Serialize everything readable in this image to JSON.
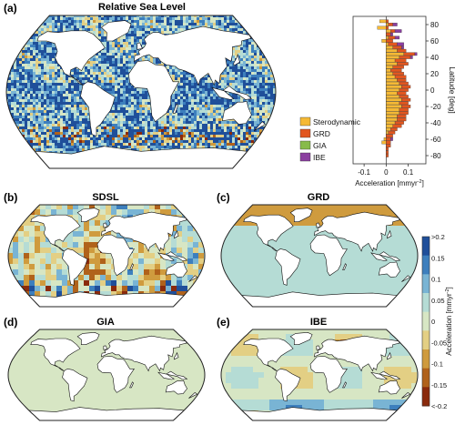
{
  "figure": {
    "panel_a": {
      "label": "(a)",
      "title": "Relative Sea Level"
    },
    "panel_b": {
      "label": "(b)",
      "title": "SDSL"
    },
    "panel_c": {
      "label": "(c)",
      "title": "GRD"
    },
    "panel_d": {
      "label": "(d)",
      "title": "GIA"
    },
    "panel_e": {
      "label": "(e)",
      "title": "IBE"
    }
  },
  "maps": {
    "a": {
      "style": "strong",
      "seed": 11
    },
    "b": {
      "style": "sdsl",
      "seed": 23
    },
    "c": {
      "style": "grd",
      "seed": 37
    },
    "d": {
      "style": "gia",
      "seed": 41
    },
    "e": {
      "style": "ibe",
      "seed": 53
    }
  },
  "colors": {
    "steric": "#f5b935",
    "grd": "#e2561f",
    "gia": "#87bb4a",
    "ibe": "#8b3ea0",
    "ocean_base": "#b3dbd9",
    "deep_blue": "#2a5aa6",
    "dark_red": "#8c2a0f"
  },
  "chart_data": {
    "type": "bar",
    "orientation": "horizontal-stacked",
    "xlabel": "Acceleration [mmyr",
    "xlabel_sup": "-2",
    "xlabel_end": "]",
    "ylabel": "Latitude [deg]",
    "xlim": [
      -0.15,
      0.18
    ],
    "ylim": [
      -90,
      90
    ],
    "xticks": [
      "-0.1",
      "0",
      "0.1"
    ],
    "xtick_values": [
      -0.1,
      0,
      0.1
    ],
    "yticks": [
      "-80",
      "-60",
      "-40",
      "-20",
      "0",
      "20",
      "40",
      "60",
      "80"
    ],
    "ytick_values": [
      -80,
      -60,
      -40,
      -20,
      0,
      20,
      40,
      60,
      80
    ],
    "legend": [
      {
        "name": "Sterodynamic",
        "key": "steric"
      },
      {
        "name": "GRD",
        "key": "grd"
      },
      {
        "name": "GIA",
        "key": "gia"
      },
      {
        "name": "IBE",
        "key": "ibe"
      }
    ],
    "latitudes": [
      84,
      80,
      76,
      72,
      68,
      64,
      60,
      56,
      52,
      48,
      44,
      40,
      36,
      32,
      28,
      24,
      20,
      16,
      12,
      8,
      4,
      0,
      -4,
      -8,
      -12,
      -16,
      -20,
      -24,
      -28,
      -32,
      -36,
      -40,
      -44,
      -48,
      -52,
      -56,
      -60,
      -64,
      -68,
      -72,
      -76,
      -80
    ],
    "series": [
      {
        "name": "Sterodynamic",
        "key": "steric",
        "values": [
          -0.03,
          0.01,
          -0.04,
          0.02,
          0.0,
          0.01,
          -0.02,
          0.01,
          0.03,
          0.05,
          0.08,
          0.06,
          0.04,
          0.05,
          0.03,
          0.02,
          0.03,
          0.04,
          0.05,
          0.06,
          0.07,
          0.06,
          0.05,
          0.06,
          0.07,
          0.06,
          0.07,
          0.06,
          0.06,
          0.05,
          0.05,
          0.04,
          0.03,
          0.02,
          0.01,
          0.0,
          -0.01,
          -0.02,
          0.0,
          0.0,
          0.0,
          0.0
        ]
      },
      {
        "name": "GRD",
        "key": "grd",
        "values": [
          0.01,
          0.02,
          0.01,
          0.02,
          0.02,
          0.03,
          0.03,
          0.04,
          0.04,
          0.04,
          0.05,
          0.05,
          0.05,
          0.05,
          0.05,
          0.05,
          0.05,
          0.05,
          0.04,
          0.04,
          0.04,
          0.04,
          0.04,
          0.04,
          0.04,
          0.04,
          0.04,
          0.04,
          0.04,
          0.04,
          0.04,
          0.04,
          0.04,
          0.03,
          0.03,
          0.03,
          0.02,
          0.02,
          0.02,
          0.01,
          0.01,
          0.01
        ]
      },
      {
        "name": "GIA",
        "key": "gia",
        "values": [
          0.0,
          0.0,
          0.0,
          0.0,
          0.0,
          0.0,
          0.0,
          0.0,
          0.0,
          0.0,
          0.0,
          0.0,
          0.0,
          0.0,
          0.0,
          0.0,
          0.0,
          0.0,
          0.0,
          0.0,
          0.0,
          0.0,
          0.0,
          0.0,
          0.0,
          0.0,
          0.0,
          0.0,
          0.0,
          0.0,
          0.0,
          0.0,
          0.0,
          0.0,
          0.0,
          0.0,
          0.0,
          0.0,
          0.0,
          0.0,
          0.0,
          0.0
        ]
      },
      {
        "name": "IBE",
        "key": "ibe",
        "values": [
          0.0,
          0.02,
          0.0,
          0.03,
          0.01,
          0.02,
          0.0,
          0.03,
          0.01,
          0.0,
          0.01,
          0.01,
          0.0,
          0.0,
          0.0,
          0.0,
          0.0,
          0.0,
          0.0,
          0.0,
          0.0,
          0.0,
          0.0,
          0.0,
          0.0,
          0.0,
          0.0,
          0.0,
          0.0,
          0.0,
          0.0,
          0.0,
          0.0,
          0.0,
          0.0,
          0.0,
          0.01,
          0.0,
          0.0,
          0.0,
          0.0,
          0.0
        ]
      }
    ]
  },
  "colorbar": {
    "label": "Acceleration [mmyr",
    "label_sup": "-2",
    "label_end": "]",
    "ticks": [
      ">0.2",
      "0.15",
      "0.1",
      "0.05",
      "0",
      "-0.05",
      "-0.1",
      "-0.15",
      "<-0.2"
    ],
    "tick_values": [
      0.2,
      0.15,
      0.1,
      0.05,
      0,
      -0.05,
      -0.1,
      -0.15,
      -0.2
    ],
    "stops": [
      "#1f4f9a",
      "#3d7fbd",
      "#79b4d4",
      "#b5dcd5",
      "#d7e6c4",
      "#e3cf84",
      "#cf9b3e",
      "#b0621b",
      "#8a2a0c"
    ]
  }
}
